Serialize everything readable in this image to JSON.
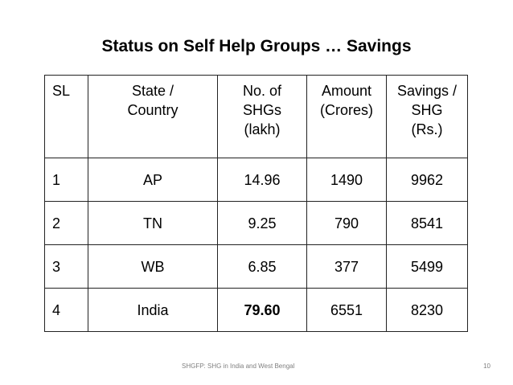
{
  "title": "Status on Self Help Groups … Savings",
  "table": {
    "headers": [
      [
        "SL"
      ],
      [
        "State /",
        "Country"
      ],
      [
        "No. of",
        "SHGs",
        "(lakh)"
      ],
      [
        "Amount",
        "(Crores)"
      ],
      [
        "Savings /",
        "SHG",
        "(Rs.)"
      ]
    ],
    "rows": [
      [
        "1",
        "AP",
        "14.96",
        "1490",
        "9962"
      ],
      [
        "2",
        "TN",
        "9.25",
        "790",
        "8541"
      ],
      [
        "3",
        "WB",
        "6.85",
        "377",
        "5499"
      ],
      [
        "4",
        "India",
        "79.60",
        "6551",
        "8230"
      ]
    ]
  },
  "footer": {
    "text": "SHGFP: SHG in India and West Bengal",
    "page_number": "10"
  }
}
